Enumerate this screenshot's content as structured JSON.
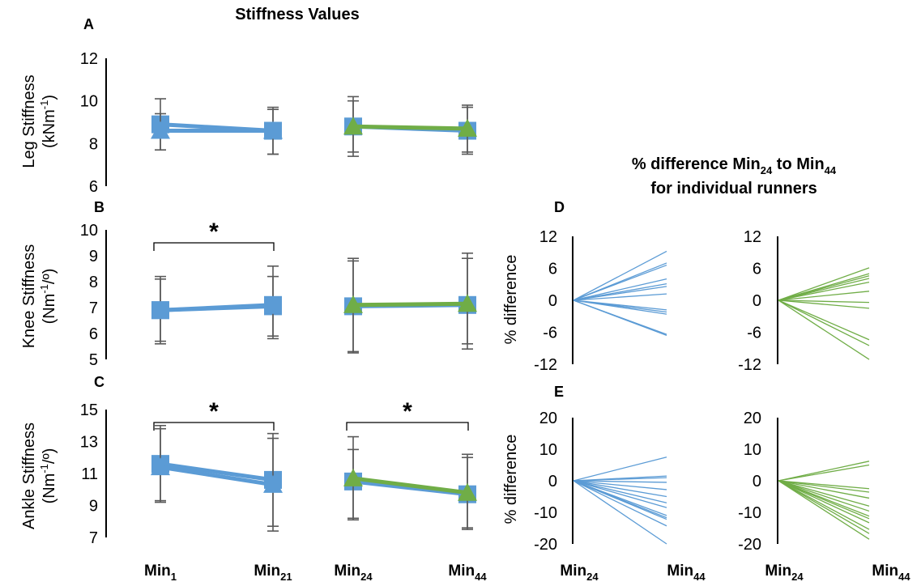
{
  "title": "Stiffness Values",
  "subtitle_line1": "% difference Min",
  "subtitle_line1_sub1": "24",
  "subtitle_line1_mid": " to Min",
  "subtitle_line1_sub2": "44",
  "subtitle_line2": "for individual runners",
  "colors": {
    "blue": "#5B9BD5",
    "green": "#70AD47",
    "error": "#595959",
    "axis": "#000000"
  },
  "x_labels": [
    {
      "text": "Min",
      "sub": "1"
    },
    {
      "text": "Min",
      "sub": "21"
    },
    {
      "text": "Min",
      "sub": "24"
    },
    {
      "text": "Min",
      "sub": "44"
    },
    {
      "text": "Min",
      "sub": "24"
    },
    {
      "text": "Min",
      "sub": "44"
    },
    {
      "text": "Min",
      "sub": "24"
    },
    {
      "text": "Min",
      "sub": "44"
    }
  ],
  "chart_data": [
    {
      "panel": "A",
      "type": "line",
      "ylabel_line1": "Leg  Stiffness",
      "ylabel_line2": "(kNm",
      "ylabel_sup": "-1",
      "ylabel_end": ")",
      "ylim": [
        6,
        12
      ],
      "yticks": [
        "6",
        "8",
        "10",
        "12"
      ],
      "series": [
        {
          "color": "blue",
          "marker": "square",
          "x": [
            "Min1",
            "Min21"
          ],
          "values": [
            8.9,
            8.6
          ],
          "err_low": [
            7.7,
            7.5
          ],
          "err_high": [
            10.1,
            9.7
          ]
        },
        {
          "color": "blue",
          "marker": "triangle",
          "x": [
            "Min1",
            "Min21"
          ],
          "values": [
            8.6,
            8.6
          ],
          "err_low": [
            7.7,
            7.5
          ],
          "err_high": [
            9.4,
            9.6
          ]
        },
        {
          "color": "blue",
          "marker": "square",
          "x": [
            "Min24",
            "Min44"
          ],
          "values": [
            8.8,
            8.6
          ],
          "err_low": [
            7.4,
            7.5
          ],
          "err_high": [
            10.2,
            9.8
          ]
        },
        {
          "color": "green",
          "marker": "triangle",
          "x": [
            "Min24",
            "Min44"
          ],
          "values": [
            8.8,
            8.7
          ],
          "err_low": [
            7.6,
            7.6
          ],
          "err_high": [
            10.0,
            9.7
          ]
        }
      ]
    },
    {
      "panel": "B",
      "type": "line",
      "ylabel_line1": "Knee Stiffness",
      "ylabel_line2": "(Nm",
      "ylabel_sup": "-1",
      "ylabel_end": "/º)",
      "ylim": [
        5,
        10
      ],
      "yticks": [
        "5",
        "6",
        "7",
        "8",
        "9",
        "10"
      ],
      "significance": [
        "Min1-Min21"
      ],
      "series": [
        {
          "color": "blue",
          "marker": "square",
          "x": [
            "Min1",
            "Min21"
          ],
          "values": [
            6.9,
            7.05
          ],
          "err_low": [
            5.6,
            5.8
          ],
          "err_high": [
            8.2,
            8.6
          ]
        },
        {
          "color": "blue",
          "marker": "square",
          "x": [
            "Min1",
            "Min21"
          ],
          "values": [
            6.9,
            7.1
          ],
          "err_low": [
            5.7,
            5.9
          ],
          "err_high": [
            8.1,
            8.2
          ]
        },
        {
          "color": "blue",
          "marker": "square",
          "x": [
            "Min24",
            "Min44"
          ],
          "values": [
            7.05,
            7.1
          ],
          "err_low": [
            5.25,
            5.4
          ],
          "err_high": [
            8.9,
            9.1
          ]
        },
        {
          "color": "green",
          "marker": "triangle",
          "x": [
            "Min24",
            "Min44"
          ],
          "values": [
            7.1,
            7.15
          ],
          "err_low": [
            5.3,
            5.6
          ],
          "err_high": [
            8.8,
            8.9
          ]
        }
      ]
    },
    {
      "panel": "C",
      "type": "line",
      "ylabel_line1": "Ankle Stiffness",
      "ylabel_line2": "(Nm",
      "ylabel_sup": "-1",
      "ylabel_end": "/º)",
      "ylim": [
        7,
        15
      ],
      "yticks": [
        "7",
        "9",
        "11",
        "13",
        "15"
      ],
      "significance": [
        "Min1-Min21",
        "Min24-Min44"
      ],
      "series": [
        {
          "color": "blue",
          "marker": "square",
          "x": [
            "Min1",
            "Min21"
          ],
          "values": [
            11.6,
            10.6
          ],
          "err_low": [
            9.2,
            7.7
          ],
          "err_high": [
            14.0,
            13.5
          ]
        },
        {
          "color": "blue",
          "marker": "triangle",
          "x": [
            "Min1",
            "Min21"
          ],
          "values": [
            11.4,
            10.3
          ],
          "err_low": [
            9.3,
            7.4
          ],
          "err_high": [
            13.8,
            13.2
          ]
        },
        {
          "color": "blue",
          "marker": "square",
          "x": [
            "Min24",
            "Min44"
          ],
          "values": [
            10.5,
            9.7
          ],
          "err_low": [
            8.1,
            7.5
          ],
          "err_high": [
            13.3,
            12.2
          ]
        },
        {
          "color": "green",
          "marker": "triangle",
          "x": [
            "Min24",
            "Min44"
          ],
          "values": [
            10.7,
            9.8
          ],
          "err_low": [
            8.2,
            7.6
          ],
          "err_high": [
            12.5,
            12.0
          ]
        }
      ]
    },
    {
      "panel": "D",
      "type": "line",
      "ylabel": "% difference",
      "ylim": [
        -12,
        12
      ],
      "yticks": [
        "-12",
        "-6",
        "0",
        "6",
        "12"
      ],
      "series": [
        {
          "color": "blue",
          "x": [
            "Min24",
            "Min44"
          ],
          "start": 0,
          "ends": [
            9.2,
            7.0,
            6.6,
            4.0,
            3.1,
            2.6,
            1.2,
            -1.8,
            -2.2,
            -2.6,
            -6.4,
            -6.6
          ]
        },
        {
          "color": "green",
          "x": [
            "Min24",
            "Min44"
          ],
          "start": 0,
          "ends": [
            6.1,
            5.0,
            4.6,
            4.1,
            3.4,
            1.7,
            -0.4,
            -1.5,
            -7.4,
            -8.5,
            -11.1
          ]
        }
      ]
    },
    {
      "panel": "E",
      "type": "line",
      "ylabel": "% difference",
      "ylim": [
        -20,
        20
      ],
      "yticks": [
        "-20",
        "-10",
        "0",
        "10",
        "20"
      ],
      "series": [
        {
          "color": "blue",
          "x": [
            "Min24",
            "Min44"
          ],
          "start": 0,
          "ends": [
            7.5,
            1.5,
            1.0,
            -0.5,
            -2.8,
            -5.0,
            -7.0,
            -8.5,
            -11.0,
            -11.7,
            -12.2,
            -14.3,
            -20.0
          ]
        },
        {
          "color": "green",
          "x": [
            "Min24",
            "Min44"
          ],
          "start": 0,
          "ends": [
            6.2,
            5.0,
            -2.5,
            -3.6,
            -5.5,
            -8.0,
            -9.6,
            -11.2,
            -12.0,
            -13.3,
            -15.4,
            -16.7,
            -18.5
          ]
        }
      ]
    }
  ]
}
